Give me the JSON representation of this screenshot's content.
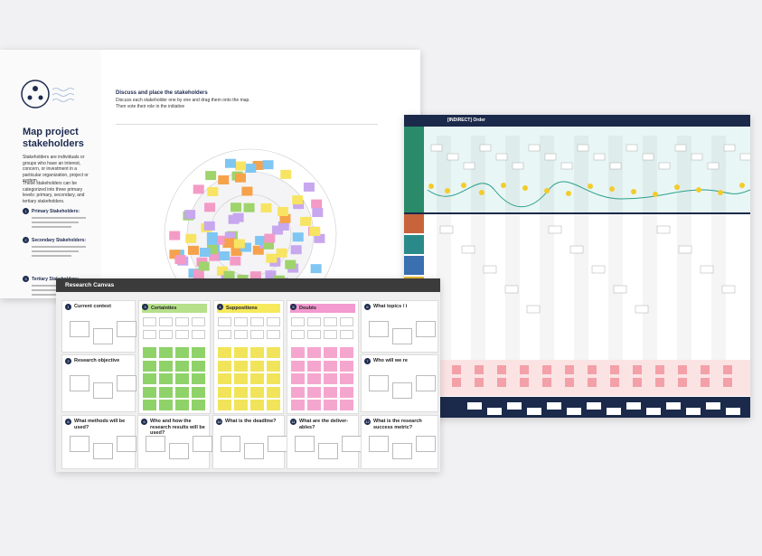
{
  "left_board": {
    "title": "Map project stakeholders",
    "intro": "Stakeholders are individuals or groups who have an interest, concern, or investment in a particular organization, project or system.",
    "levels": "These stakeholders can be categorized into three primary levels: primary, secondary, and tertiary stakeholders.",
    "sections": [
      {
        "number": "1",
        "heading": "Primary Stakeholders:"
      },
      {
        "number": "2",
        "heading": "Secondary Stakeholders:"
      },
      {
        "number": "3",
        "heading": "Tertiary Stakeholders:"
      }
    ],
    "step_title": "Discuss and place the stakeholders",
    "step_text": "Discuss each stakeholder one by one and drag them onto the map. Then vote their role in the initiative"
  },
  "research_canvas": {
    "title": "Research Canvas",
    "cells": [
      {
        "number": "1",
        "label": "Current context"
      },
      {
        "number": "2",
        "label": "Research objective"
      },
      {
        "number": "3",
        "label": "Certainties"
      },
      {
        "number": "4",
        "label": "Suppositions"
      },
      {
        "number": "5",
        "label": "Doubts"
      },
      {
        "number": "6",
        "label": "What topics / i"
      },
      {
        "number": "7",
        "label": "Who will we re"
      },
      {
        "number": "8",
        "label": "What methods will be used?"
      },
      {
        "number": "9",
        "label": "Who and how the research results will be used?"
      },
      {
        "number": "10",
        "label": "What is the deadline?"
      },
      {
        "number": "11",
        "label": "What are the deliver-ables?"
      },
      {
        "number": "12",
        "label": "What is the research success metric?"
      }
    ]
  },
  "journey_board": {
    "title": "[INDIRECT] Order"
  }
}
